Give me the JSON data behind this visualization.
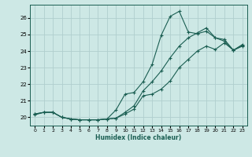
{
  "xlabel": "Humidex (Indice chaleur)",
  "bg_color": "#cde8e5",
  "grid_color": "#b0cece",
  "line_color": "#1a5e52",
  "xlim": [
    -0.5,
    23.5
  ],
  "ylim": [
    19.5,
    26.8
  ],
  "xticks": [
    0,
    1,
    2,
    3,
    4,
    5,
    6,
    7,
    8,
    9,
    10,
    11,
    12,
    13,
    14,
    15,
    16,
    17,
    18,
    19,
    20,
    21,
    22,
    23
  ],
  "yticks": [
    20,
    21,
    22,
    23,
    24,
    25,
    26
  ],
  "series": [
    {
      "x": [
        0,
        1,
        2,
        3,
        4,
        5,
        6,
        7,
        8,
        9,
        10,
        11,
        12,
        13,
        14,
        15,
        16,
        17,
        18,
        19,
        20,
        21,
        22,
        23
      ],
      "y": [
        20.2,
        20.3,
        20.3,
        20.0,
        19.9,
        19.85,
        19.85,
        19.85,
        19.9,
        20.45,
        21.4,
        21.5,
        22.15,
        23.2,
        24.95,
        26.1,
        26.4,
        25.15,
        25.05,
        25.2,
        24.8,
        24.7,
        24.05,
        24.3
      ]
    },
    {
      "x": [
        0,
        1,
        2,
        3,
        4,
        5,
        6,
        7,
        8,
        9,
        10,
        11,
        12,
        13,
        14,
        15,
        16,
        17,
        18,
        19,
        20,
        21,
        22,
        23
      ],
      "y": [
        20.2,
        20.3,
        20.3,
        20.0,
        19.9,
        19.85,
        19.85,
        19.85,
        19.9,
        19.95,
        20.3,
        20.7,
        21.6,
        22.15,
        22.8,
        23.6,
        24.3,
        24.8,
        25.1,
        25.4,
        24.8,
        24.6,
        24.05,
        24.4
      ]
    },
    {
      "x": [
        0,
        1,
        2,
        3,
        4,
        5,
        6,
        7,
        8,
        9,
        10,
        11,
        12,
        13,
        14,
        15,
        16,
        17,
        18,
        19,
        20,
        21,
        22,
        23
      ],
      "y": [
        20.15,
        20.3,
        20.3,
        20.0,
        19.9,
        19.85,
        19.85,
        19.85,
        19.9,
        19.95,
        20.2,
        20.5,
        21.3,
        21.4,
        21.7,
        22.2,
        23.0,
        23.5,
        24.0,
        24.3,
        24.1,
        24.5,
        24.05,
        24.35
      ]
    }
  ]
}
